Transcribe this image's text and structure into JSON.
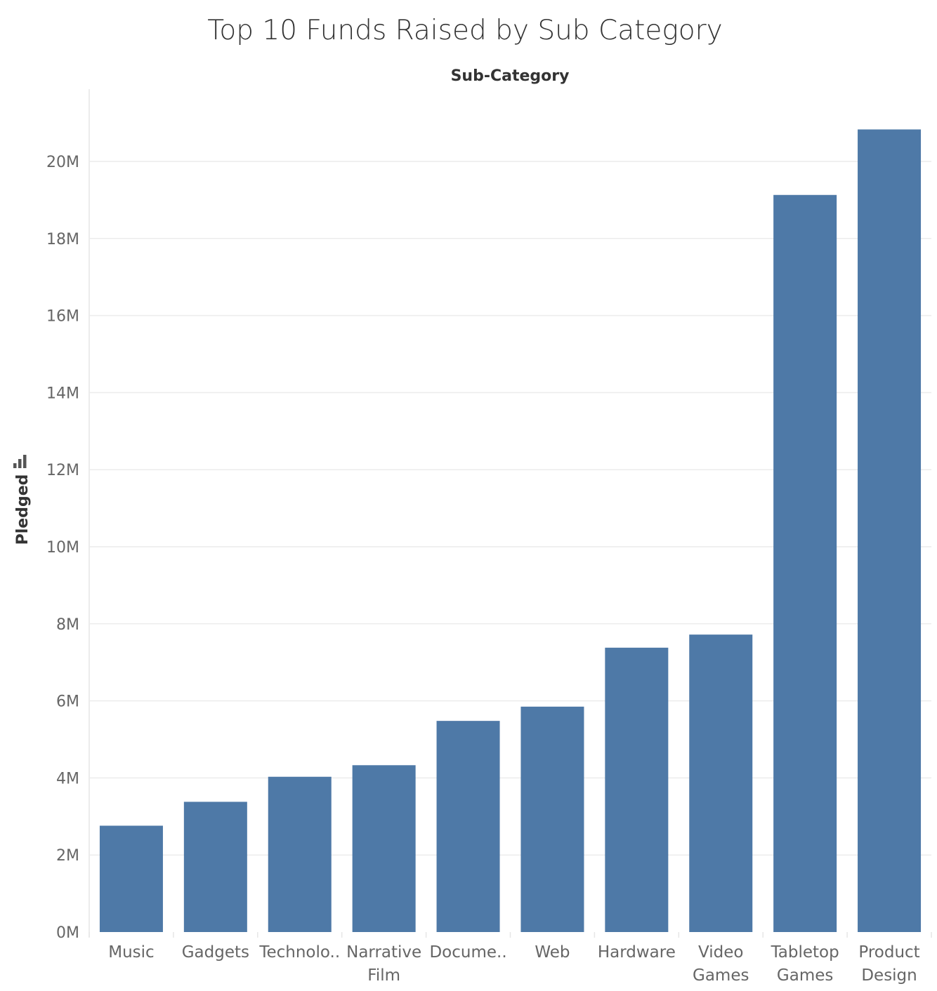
{
  "chart_data": {
    "type": "bar",
    "title": "Top 10 Funds Raised by Sub Category",
    "column_header": "Sub-Category",
    "ylabel": "Pledged",
    "ylabel_icon": "sort-bars-icon",
    "categories": [
      [
        "Music"
      ],
      [
        "Gadgets"
      ],
      [
        "Technolo.."
      ],
      [
        "Narrative",
        "Film"
      ],
      [
        "Docume.."
      ],
      [
        "Web"
      ],
      [
        "Hardware"
      ],
      [
        "Video",
        "Games"
      ],
      [
        "Tabletop",
        "Games"
      ],
      [
        "Product",
        "Design"
      ]
    ],
    "values": [
      2760000,
      3380000,
      4030000,
      4330000,
      5480000,
      5850000,
      7380000,
      7720000,
      19130000,
      20830000
    ],
    "ylim": [
      0,
      22000000
    ],
    "yticks": [
      0,
      2000000,
      4000000,
      6000000,
      8000000,
      10000000,
      12000000,
      14000000,
      16000000,
      18000000,
      20000000
    ],
    "ytick_labels": [
      "0M",
      "2M",
      "4M",
      "6M",
      "8M",
      "10M",
      "12M",
      "14M",
      "16M",
      "18M",
      "20M"
    ],
    "grid": true,
    "bar_color": "#4e79a7"
  }
}
